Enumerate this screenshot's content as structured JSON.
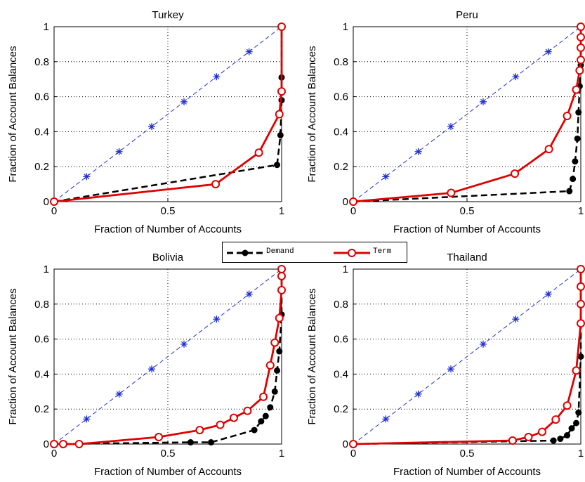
{
  "legend": {
    "demand": "Demand",
    "term": "Term"
  },
  "colors": {
    "demand": "#000000",
    "term": "#e00000",
    "diagonal": "#1f2fcf"
  },
  "chart_data": [
    {
      "type": "line",
      "title": "Turkey",
      "xlabel": "Fraction of Number of Accounts",
      "ylabel": "Fraction of Account Balances",
      "xlim": [
        0,
        1
      ],
      "ylim": [
        0,
        1
      ],
      "xticks": [
        "0",
        "0.5",
        "1"
      ],
      "yticks": [
        "0",
        "0.2",
        "0.4",
        "0.6",
        "0.8",
        "1"
      ],
      "grid": true,
      "series": [
        {
          "name": "Demand",
          "x": [
            0,
            0.98,
            0.995,
            1,
            1,
            1
          ],
          "y": [
            0,
            0.21,
            0.38,
            0.58,
            0.71,
            1
          ]
        },
        {
          "name": "Term",
          "x": [
            0,
            0.71,
            0.9,
            0.99,
            1,
            1
          ],
          "y": [
            0,
            0.1,
            0.28,
            0.5,
            0.63,
            1
          ]
        },
        {
          "x": [
            0,
            0.143,
            0.286,
            0.429,
            0.571,
            0.714,
            0.857,
            1
          ],
          "y": [
            0,
            0.143,
            0.286,
            0.429,
            0.571,
            0.714,
            0.857,
            1
          ]
        }
      ]
    },
    {
      "type": "line",
      "title": "Peru",
      "xlabel": "Fraction of Number of Accounts",
      "ylabel": "Fraction of Account Balances",
      "xlim": [
        0,
        1
      ],
      "ylim": [
        0,
        1
      ],
      "xticks": [
        "0",
        "0.5",
        "1"
      ],
      "yticks": [
        "0",
        "0.2",
        "0.4",
        "0.6",
        "0.8",
        "1"
      ],
      "grid": true,
      "series": [
        {
          "name": "Demand",
          "x": [
            0,
            0.95,
            0.965,
            0.975,
            0.985,
            0.99,
            0.995,
            1,
            1
          ],
          "y": [
            0,
            0.06,
            0.13,
            0.23,
            0.36,
            0.51,
            0.66,
            0.78,
            1
          ]
        },
        {
          "name": "Term",
          "x": [
            0,
            0.43,
            0.71,
            0.86,
            0.94,
            0.98,
            0.995,
            1,
            1,
            1,
            1
          ],
          "y": [
            0,
            0.05,
            0.16,
            0.3,
            0.49,
            0.64,
            0.75,
            0.81,
            0.88,
            0.94,
            1
          ]
        },
        {
          "x": [
            0,
            0.143,
            0.286,
            0.429,
            0.571,
            0.714,
            0.857,
            1
          ],
          "y": [
            0,
            0.143,
            0.286,
            0.429,
            0.571,
            0.714,
            0.857,
            1
          ]
        }
      ]
    },
    {
      "type": "line",
      "title": "Bolivia",
      "xlabel": "Fraction of Number of Accounts",
      "ylabel": "Fraction of Account Balances",
      "xlim": [
        0,
        1
      ],
      "ylim": [
        0,
        1
      ],
      "xticks": [
        "0",
        "0.5",
        "1"
      ],
      "yticks": [
        "0",
        "0.2",
        "0.4",
        "0.6",
        "0.8",
        "1"
      ],
      "grid": true,
      "series": [
        {
          "name": "Demand",
          "x": [
            0,
            0.6,
            0.69,
            0.88,
            0.91,
            0.93,
            0.95,
            0.97,
            0.98,
            0.99,
            1,
            1
          ],
          "y": [
            0,
            0.01,
            0.01,
            0.08,
            0.13,
            0.16,
            0.21,
            0.3,
            0.42,
            0.53,
            0.74,
            1
          ]
        },
        {
          "name": "Term",
          "x": [
            0,
            0.04,
            0.11,
            0.46,
            0.64,
            0.73,
            0.79,
            0.85,
            0.92,
            0.95,
            0.97,
            0.99,
            1,
            1,
            1
          ],
          "y": [
            0,
            0,
            0,
            0.04,
            0.08,
            0.11,
            0.15,
            0.19,
            0.27,
            0.45,
            0.58,
            0.72,
            0.88,
            0.96,
            1
          ]
        },
        {
          "x": [
            0,
            0.143,
            0.286,
            0.429,
            0.571,
            0.714,
            0.857,
            1
          ],
          "y": [
            0,
            0.143,
            0.286,
            0.429,
            0.571,
            0.714,
            0.857,
            1
          ]
        }
      ]
    },
    {
      "type": "line",
      "title": "Thailand",
      "xlabel": "Fraction of Number of Accounts",
      "ylabel": "Fraction of Account Balances",
      "xlim": [
        0,
        1
      ],
      "ylim": [
        0,
        1
      ],
      "xticks": [
        "0",
        "0.5",
        "1"
      ],
      "yticks": [
        "0",
        "0.2",
        "0.4",
        "0.6",
        "0.8",
        "1"
      ],
      "grid": true,
      "series": [
        {
          "name": "Demand",
          "x": [
            0,
            0.88,
            0.91,
            0.94,
            0.96,
            0.98,
            0.99,
            1,
            1
          ],
          "y": [
            0,
            0.02,
            0.03,
            0.05,
            0.09,
            0.12,
            0.18,
            0.5,
            1
          ]
        },
        {
          "name": "Term",
          "x": [
            0,
            0.7,
            0.77,
            0.83,
            0.89,
            0.94,
            0.98,
            1,
            1,
            1,
            1
          ],
          "y": [
            0,
            0.02,
            0.04,
            0.07,
            0.14,
            0.22,
            0.42,
            0.69,
            0.8,
            0.9,
            1
          ]
        },
        {
          "x": [
            0,
            0.143,
            0.286,
            0.429,
            0.571,
            0.714,
            0.857,
            1
          ],
          "y": [
            0,
            0.143,
            0.286,
            0.429,
            0.571,
            0.714,
            0.857,
            1
          ]
        }
      ]
    }
  ]
}
